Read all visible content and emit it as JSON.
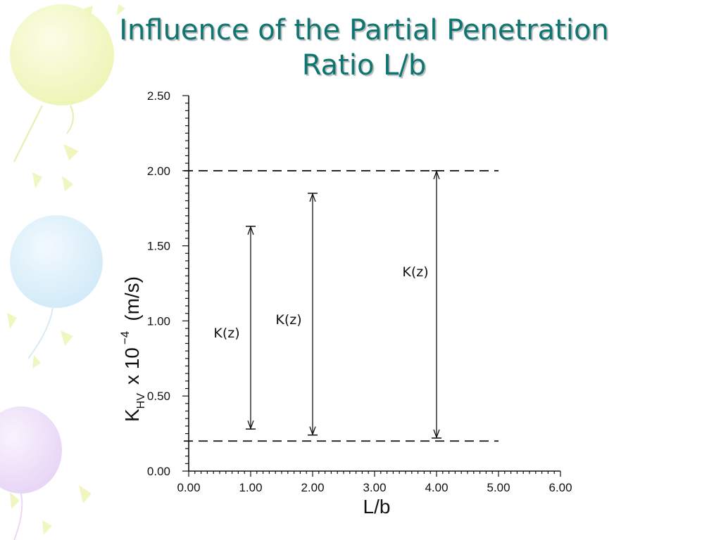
{
  "slide": {
    "title_line1": "Influence of the Partial Penetration",
    "title_line2": "Ratio L/b",
    "colors": {
      "title": "#0e7571",
      "balloon_yellow": "#f3f7c6",
      "balloon_blue": "#dff0fb",
      "balloon_purple": "#efe2f9"
    },
    "decoration": "balloon-pattern"
  },
  "chart_data": {
    "type": "range",
    "xlabel": "L/b",
    "ylabel": {
      "main": "K",
      "sub": "HV",
      "mid": "x 10",
      "exp": "−4",
      "unit": "(m/s)"
    },
    "xlim": [
      0,
      6
    ],
    "ylim": [
      0,
      2.5
    ],
    "x_ticks": [
      "0.00",
      "1.00",
      "2.00",
      "3.00",
      "4.00",
      "5.00",
      "6.00"
    ],
    "y_ticks": [
      "0.00",
      "0.50",
      "1.00",
      "1.50",
      "2.00",
      "2.50"
    ],
    "reference_lines": [
      {
        "y": 2.0,
        "x_range": [
          0,
          5
        ],
        "style": "dashed"
      },
      {
        "y": 0.2,
        "x_range": [
          0,
          5
        ],
        "style": "dashed"
      }
    ],
    "ranges": [
      {
        "x": 1.0,
        "low": 0.28,
        "high": 1.63,
        "label": "K(z)"
      },
      {
        "x": 2.0,
        "low": 0.24,
        "high": 1.85,
        "label": "K(z)"
      },
      {
        "x": 4.0,
        "low": 0.22,
        "high": 2.0,
        "label": "K(z)"
      }
    ]
  }
}
